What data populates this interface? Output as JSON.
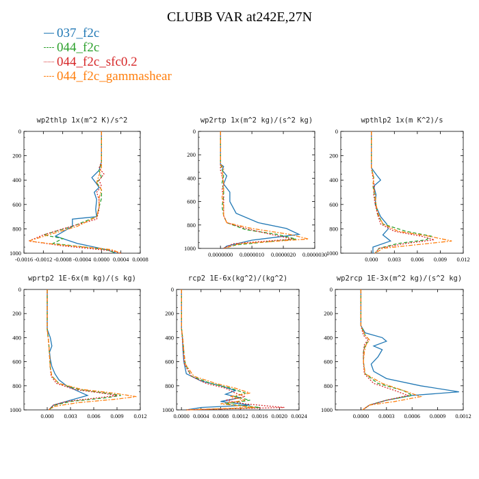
{
  "title": "CLUBB VAR at242E,27N",
  "legend": [
    {
      "label": "037_f2c",
      "color": "#1f77b4",
      "dash": "solid"
    },
    {
      "label": "044_f2c",
      "color": "#2ca02c",
      "dash": "dashed"
    },
    {
      "label": "044_f2c_sfc0.2",
      "color": "#d62728",
      "dash": "dotted"
    },
    {
      "label": "044_f2c_gammashear",
      "color": "#ff7f0e",
      "dash": "dashdot"
    }
  ],
  "chart_data": [
    {
      "type": "line",
      "title": "wp2thlp  1x(m^2 K)/s^2",
      "xlim": [
        -0.0016,
        0.0008
      ],
      "xticks": [
        "-0.0016",
        "-0.0012",
        "-0.0008",
        "-0.0004",
        "0.0000",
        "0.0004",
        "0.0008"
      ],
      "xtick_values": [
        -0.0016,
        -0.0012,
        -0.0008,
        -0.0004,
        0.0,
        0.0004,
        0.0008
      ],
      "ylim": [
        1000,
        0
      ],
      "yticks": [
        "0",
        "200",
        "400",
        "600",
        "800",
        "1000"
      ],
      "ytick_values": [
        0,
        200,
        400,
        600,
        800,
        1000
      ],
      "series": [
        {
          "name": "037_f2c",
          "y": [
            0,
            250,
            320,
            380,
            420,
            460,
            500,
            560,
            640,
            700,
            720,
            780,
            860,
            920,
            970,
            1000
          ],
          "x": [
            0,
            0,
            -5e-05,
            -0.0002,
            -0.00012,
            -5e-05,
            -0.00015,
            -0.0001,
            -0.00012,
            -0.0001,
            -0.0006,
            -0.0006,
            -0.00095,
            -0.0005,
            0.0001,
            0.0003
          ]
        },
        {
          "name": "044_f2c",
          "y": [
            0,
            250,
            320,
            380,
            420,
            480,
            550,
            620,
            700,
            780,
            850,
            880,
            920,
            970,
            1000
          ],
          "x": [
            0,
            0,
            -5e-05,
            0.0,
            -0.0001,
            0.0,
            0.0,
            -5e-05,
            -0.0001,
            -0.0006,
            -0.0012,
            -0.0008,
            -0.001,
            0.0001,
            0.0003
          ]
        },
        {
          "name": "044_f2c_sfc0.2",
          "y": [
            0,
            250,
            300,
            350,
            400,
            450,
            500,
            560,
            640,
            720,
            800,
            850,
            900,
            940,
            980,
            1000
          ],
          "x": [
            0,
            0,
            -5e-05,
            5e-05,
            -5e-05,
            0.0,
            -0.0001,
            -5e-05,
            -5e-05,
            -0.0001,
            -0.0008,
            -0.0012,
            -0.0015,
            -0.0008,
            0.0002,
            0.0004
          ]
        },
        {
          "name": "044_f2c_gammashear",
          "y": [
            0,
            250,
            300,
            360,
            420,
            480,
            550,
            620,
            700,
            780,
            850,
            900,
            930,
            970,
            1000
          ],
          "x": [
            0,
            0,
            0.0,
            -5e-05,
            -0.0001,
            0.0,
            -5e-05,
            -5e-05,
            -0.0001,
            -0.0005,
            -0.0011,
            -0.0015,
            -0.0009,
            0.0002,
            0.0004
          ]
        }
      ]
    },
    {
      "type": "line",
      "title": "wp2rtp  1x(m^2 kg)/(s^2 kg)",
      "xlim": [
        -7e-07,
        3e-06
      ],
      "xticks": [
        "0.0000000",
        "0.0000010",
        "0.0000020",
        "0.0000030"
      ],
      "xtick_values": [
        0.0,
        1e-06,
        2e-06,
        3e-06
      ],
      "ylim": [
        1000,
        0
      ],
      "yticks": [
        "0",
        "200",
        "400",
        "600",
        "800",
        "1000"
      ],
      "ytick_values": [
        0,
        200,
        400,
        600,
        800,
        1000
      ],
      "series": [
        {
          "name": "037_f2c",
          "y": [
            0,
            280,
            300,
            330,
            380,
            450,
            520,
            600,
            700,
            780,
            830,
            880,
            930,
            980,
            1000
          ],
          "x": [
            0,
            0,
            1e-07,
            5e-08,
            2e-07,
            1e-07,
            3e-07,
            3e-07,
            5e-07,
            1.2e-06,
            2.1e-06,
            2.5e-06,
            1e-06,
            2e-07,
            1e-07
          ]
        },
        {
          "name": "044_f2c",
          "y": [
            0,
            280,
            320,
            380,
            440,
            500,
            560,
            640,
            720,
            780,
            840,
            880,
            920,
            970,
            1000
          ],
          "x": [
            0,
            0,
            5e-08,
            1e-07,
            5e-08,
            1e-07,
            1e-07,
            5e-08,
            1e-07,
            2e-07,
            8e-07,
            1.8e-06,
            2.4e-06,
            5e-07,
            1e-07
          ]
        },
        {
          "name": "044_f2c_sfc0.2",
          "y": [
            0,
            280,
            330,
            380,
            440,
            500,
            560,
            640,
            720,
            780,
            830,
            880,
            920,
            960,
            1000
          ],
          "x": [
            0,
            0,
            0.0,
            5e-08,
            1e-07,
            5e-08,
            1e-07,
            1e-07,
            1e-07,
            2e-07,
            8e-07,
            1.6e-06,
            2.3e-06,
            4e-07,
            1e-07
          ]
        },
        {
          "name": "044_f2c_gammashear",
          "y": [
            0,
            280,
            320,
            380,
            440,
            500,
            560,
            640,
            720,
            780,
            830,
            880,
            920,
            960,
            1000
          ],
          "x": [
            0,
            0,
            1e-07,
            5e-08,
            1e-07,
            1e-07,
            5e-08,
            1e-07,
            1e-07,
            2e-07,
            1e-06,
            2.2e-06,
            2.8e-06,
            6e-07,
            1e-07
          ]
        }
      ]
    },
    {
      "type": "line",
      "title": "wpthlp2  1x(m K^2)/s",
      "xlim": [
        -0.004,
        0.012
      ],
      "xticks": [
        "0.000",
        "0.003",
        "0.006",
        "0.009",
        "0.012"
      ],
      "xtick_values": [
        0.0,
        0.003,
        0.006,
        0.009,
        0.012
      ],
      "ylim": [
        1000,
        0
      ],
      "yticks": [
        "0",
        "200",
        "400",
        "600",
        "800",
        "1000"
      ],
      "ytick_values": [
        0,
        200,
        400,
        600,
        800,
        1000
      ],
      "series": [
        {
          "name": "037_f2c",
          "y": [
            0,
            300,
            360,
            400,
            450,
            520,
            600,
            700,
            760,
            800,
            850,
            900,
            950,
            1000
          ],
          "x": [
            0,
            0,
            0.0007,
            0.0012,
            0.0003,
            0.0006,
            0.0005,
            0.0012,
            0.002,
            0.0022,
            0.0015,
            0.0025,
            0.0002,
            0.0002
          ]
        },
        {
          "name": "044_f2c",
          "y": [
            0,
            300,
            380,
            450,
            520,
            600,
            680,
            760,
            820,
            860,
            890,
            920,
            960,
            1000
          ],
          "x": [
            0,
            0,
            0.0003,
            0.0002,
            0.0004,
            0.0006,
            0.0008,
            0.0015,
            0.0045,
            0.0078,
            0.0072,
            0.0035,
            0.001,
            0.0005
          ]
        },
        {
          "name": "044_f2c_sfc0.2",
          "y": [
            0,
            300,
            380,
            450,
            520,
            600,
            680,
            760,
            820,
            860,
            890,
            920,
            960,
            1000
          ],
          "x": [
            0,
            0,
            0.0002,
            0.0004,
            0.0003,
            0.0005,
            0.0008,
            0.0012,
            0.003,
            0.0065,
            0.0082,
            0.0045,
            0.001,
            0.0005
          ]
        },
        {
          "name": "044_f2c_gammashear",
          "y": [
            0,
            300,
            380,
            450,
            520,
            600,
            680,
            760,
            820,
            860,
            900,
            930,
            960,
            1000
          ],
          "x": [
            0,
            0,
            0.0003,
            0.0002,
            0.0005,
            0.0006,
            0.0009,
            0.0015,
            0.0035,
            0.0075,
            0.0105,
            0.006,
            0.0015,
            0.0005
          ]
        }
      ]
    },
    {
      "type": "line",
      "title": "wprtp2  1E-6x(m kg)/(s kg)",
      "xlim": [
        -0.003,
        0.012
      ],
      "xticks": [
        "0.000",
        "0.003",
        "0.006",
        "0.009",
        "0.012"
      ],
      "xtick_values": [
        0.0,
        0.003,
        0.006,
        0.009,
        0.012
      ],
      "ylim": [
        1000,
        0
      ],
      "yticks": [
        "0",
        "200",
        "400",
        "600",
        "800",
        "1000"
      ],
      "ytick_values": [
        0,
        200,
        400,
        600,
        800,
        1000
      ],
      "series": [
        {
          "name": "037_f2c",
          "y": [
            0,
            330,
            400,
            470,
            520,
            580,
            640,
            700,
            750,
            800,
            840,
            880,
            920,
            960,
            1000
          ],
          "x": [
            0,
            0,
            0.0004,
            0.0006,
            0.0003,
            0.0004,
            0.0006,
            0.001,
            0.0015,
            0.0025,
            0.0038,
            0.0052,
            0.003,
            0.0008,
            0.0002
          ]
        },
        {
          "name": "044_f2c",
          "y": [
            0,
            330,
            450,
            550,
            650,
            720,
            780,
            830,
            860,
            880,
            900,
            930,
            960,
            1000
          ],
          "x": [
            0,
            0,
            0.0002,
            0.0003,
            0.0004,
            0.0006,
            0.0015,
            0.004,
            0.0075,
            0.0095,
            0.0075,
            0.003,
            0.001,
            0.0002
          ]
        },
        {
          "name": "044_f2c_sfc0.2",
          "y": [
            0,
            330,
            450,
            550,
            650,
            720,
            780,
            830,
            860,
            880,
            900,
            930,
            960,
            1000
          ],
          "x": [
            0,
            0,
            0.0002,
            0.0003,
            0.0004,
            0.0005,
            0.0012,
            0.0035,
            0.007,
            0.009,
            0.0065,
            0.0025,
            0.0008,
            0.0002
          ]
        },
        {
          "name": "044_f2c_gammashear",
          "y": [
            0,
            330,
            450,
            550,
            650,
            720,
            780,
            830,
            860,
            890,
            910,
            940,
            970,
            1000
          ],
          "x": [
            0,
            0,
            0.0002,
            0.0003,
            0.0004,
            0.0006,
            0.0015,
            0.0045,
            0.0085,
            0.0115,
            0.009,
            0.004,
            0.001,
            0.0002
          ]
        }
      ]
    },
    {
      "type": "line",
      "title": "rcp2  1E-6x(kg^2)/(kg^2)",
      "xlim": [
        -0.0001,
        0.0024
      ],
      "xticks": [
        "0.0000",
        "0.0004",
        "0.0008",
        "0.0012",
        "0.0016",
        "0.0020",
        "0.0024"
      ],
      "xtick_values": [
        0.0,
        0.0004,
        0.0008,
        0.0012,
        0.0016,
        0.002,
        0.0024
      ],
      "ylim": [
        1000,
        0
      ],
      "yticks": [
        "0",
        "200",
        "400",
        "600",
        "800",
        "1000"
      ],
      "ytick_values": [
        0,
        200,
        400,
        600,
        800,
        1000
      ],
      "series": [
        {
          "name": "037_f2c",
          "y": [
            0,
            320,
            400,
            500,
            600,
            700,
            760,
            800,
            840,
            870,
            900,
            930,
            960,
            980,
            1000
          ],
          "x": [
            0,
            0,
            2e-05,
            3e-05,
            5e-05,
            0.0001,
            0.0004,
            0.0008,
            0.0011,
            0.0009,
            0.0012,
            0.0008,
            0.0014,
            0.0004,
            0.0001
          ]
        },
        {
          "name": "044_f2c",
          "y": [
            0,
            320,
            420,
            520,
            620,
            720,
            780,
            820,
            860,
            890,
            920,
            950,
            980,
            1000
          ],
          "x": [
            0,
            0,
            3e-05,
            5e-05,
            8e-05,
            0.0002,
            0.0006,
            0.001,
            0.0013,
            0.0011,
            0.0014,
            0.0009,
            0.0016,
            0.0001
          ]
        },
        {
          "name": "044_f2c_sfc0.2",
          "y": [
            0,
            320,
            420,
            520,
            620,
            720,
            780,
            820,
            860,
            890,
            920,
            950,
            980,
            1000
          ],
          "x": [
            0,
            0,
            2e-05,
            4e-05,
            6e-05,
            0.0002,
            0.0005,
            0.0009,
            0.0011,
            0.0013,
            0.0009,
            0.0013,
            0.0021,
            0.0001
          ]
        },
        {
          "name": "044_f2c_gammashear",
          "y": [
            0,
            320,
            420,
            520,
            620,
            720,
            780,
            820,
            860,
            890,
            920,
            950,
            980,
            1000
          ],
          "x": [
            0,
            0,
            3e-05,
            5e-05,
            8e-05,
            0.00025,
            0.0007,
            0.0011,
            0.0014,
            0.001,
            0.0013,
            0.0008,
            0.0015,
            0.0001
          ]
        }
      ]
    },
    {
      "type": "line",
      "title": "wp2rcp  1E-3x(m^2 kg)/(s^2 kg)",
      "xlim": [
        -0.0003,
        0.0012
      ],
      "xticks": [
        "0.0000",
        "0.0003",
        "0.0006",
        "0.0009",
        "0.0012"
      ],
      "xtick_values": [
        0.0,
        0.0003,
        0.0006,
        0.0009,
        0.0012
      ],
      "ylim": [
        1000,
        0
      ],
      "yticks": [
        "0",
        "200",
        "400",
        "600",
        "800",
        "1000"
      ],
      "ytick_values": [
        0,
        200,
        400,
        600,
        800,
        1000
      ],
      "series": [
        {
          "name": "037_f2c",
          "y": [
            0,
            300,
            360,
            400,
            430,
            470,
            500,
            560,
            620,
            680,
            740,
            800,
            850,
            880,
            920,
            960,
            1000
          ],
          "x": [
            0,
            0,
            5e-05,
            0.00025,
            0.0003,
            0.00015,
            0.00025,
            0.0002,
            0.00012,
            0.00015,
            0.0003,
            0.0007,
            0.00115,
            0.0006,
            0.0003,
            0.0001,
            2e-05
          ]
        },
        {
          "name": "044_f2c",
          "y": [
            0,
            300,
            380,
            420,
            460,
            520,
            600,
            700,
            780,
            840,
            880,
            920,
            960,
            1000
          ],
          "x": [
            0,
            0,
            5e-05,
            0.0001,
            5e-05,
            3e-05,
            3e-05,
            5e-05,
            0.0002,
            0.0005,
            0.0006,
            0.0003,
            0.0001,
            2e-05
          ]
        },
        {
          "name": "044_f2c_sfc0.2",
          "y": [
            0,
            300,
            380,
            420,
            460,
            520,
            600,
            700,
            780,
            840,
            880,
            920,
            960,
            1000
          ],
          "x": [
            0,
            0,
            3e-05,
            8e-05,
            4e-05,
            3e-05,
            3e-05,
            4e-05,
            0.00015,
            0.0004,
            0.00055,
            0.0003,
            0.0001,
            2e-05
          ]
        },
        {
          "name": "044_f2c_gammashear",
          "y": [
            0,
            300,
            380,
            420,
            460,
            520,
            600,
            700,
            780,
            840,
            890,
            930,
            960,
            1000
          ],
          "x": [
            0,
            0,
            5e-05,
            0.0001,
            6e-05,
            4e-05,
            3e-05,
            5e-05,
            0.00025,
            0.0005,
            0.0007,
            0.0004,
            0.0001,
            2e-05
          ]
        }
      ]
    }
  ]
}
